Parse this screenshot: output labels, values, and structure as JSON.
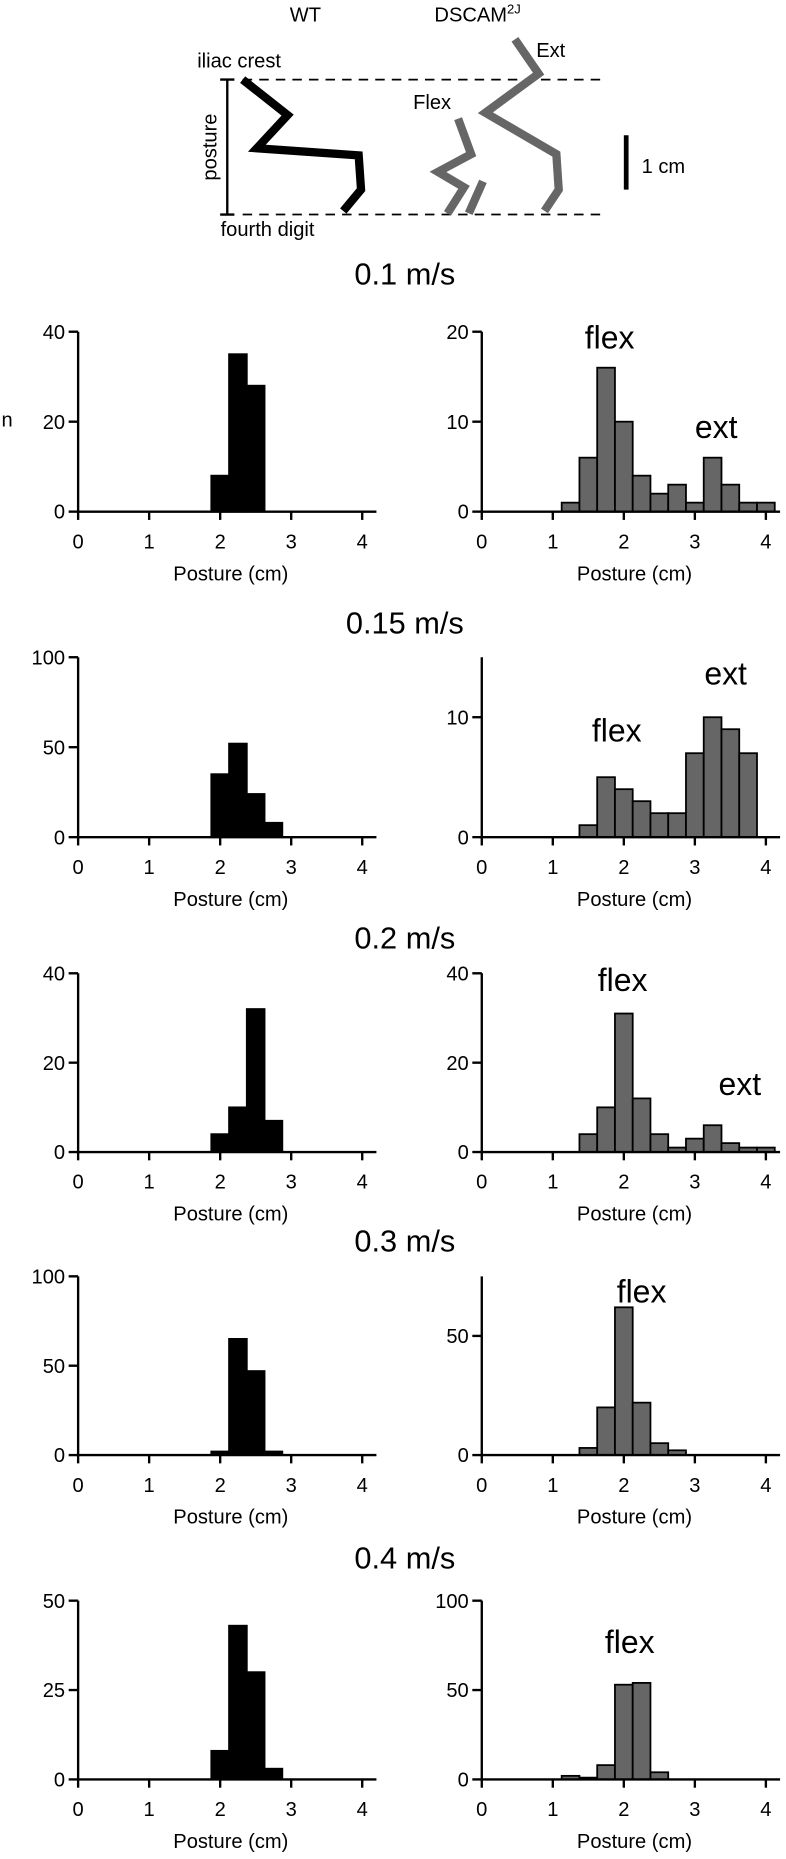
{
  "diagram": {
    "wt_label": "WT",
    "mutant_label": {
      "base": "DSCAM",
      "superscript": "2J"
    },
    "ext_label": "Ext",
    "flex_label": "Flex",
    "top_label": "iliac crest",
    "bottom_label": "fourth digit",
    "axis_label": "posture",
    "scale_label": "1 cm"
  },
  "speeds": [
    "0.1 m/s",
    "0.15 m/s",
    "0.2 m/s",
    "0.3 m/s",
    "0.4 m/s"
  ],
  "chart_data": [
    {
      "type": "histogram",
      "ylabel": "n",
      "xlabel": "Posture (cm)",
      "color": "#000000",
      "bins": [
        1.875,
        2.125,
        2.375,
        2.625
      ],
      "counts": [
        8,
        35,
        28
      ],
      "xlim": [
        0,
        4.2
      ],
      "xticks": [
        0,
        1,
        2,
        3,
        4
      ],
      "ylim": [
        0,
        40
      ],
      "yticks": [
        0,
        20,
        40
      ]
    },
    {
      "type": "histogram",
      "xlabel": "Posture (cm)",
      "color": "#666666",
      "bins": [
        1.125,
        1.375,
        1.625,
        1.875,
        2.125,
        2.375,
        2.625,
        2.875,
        3.125,
        3.375,
        3.625,
        3.875,
        4.125
      ],
      "counts": [
        1,
        6,
        16,
        10,
        4,
        2,
        3,
        1,
        6,
        3,
        1,
        1
      ],
      "xlim": [
        0,
        4.2
      ],
      "xticks": [
        0,
        1,
        2,
        3,
        4
      ],
      "ylim": [
        0,
        20
      ],
      "yticks": [
        0,
        10,
        20
      ],
      "annotations": [
        "flex",
        "ext"
      ]
    },
    {
      "type": "histogram",
      "xlabel": "Posture (cm)",
      "color": "#000000",
      "bins": [
        1.875,
        2.125,
        2.375,
        2.625,
        2.875
      ],
      "counts": [
        35,
        52,
        24,
        8
      ],
      "xlim": [
        0,
        4.2
      ],
      "xticks": [
        0,
        1,
        2,
        3,
        4
      ],
      "ylim": [
        0,
        100
      ],
      "yticks": [
        0,
        50,
        100
      ]
    },
    {
      "type": "histogram",
      "xlabel": "Posture (cm)",
      "color": "#666666",
      "bins": [
        1.375,
        1.625,
        1.875,
        2.125,
        2.375,
        2.625,
        2.875,
        3.125,
        3.375,
        3.625,
        3.875
      ],
      "counts": [
        1,
        5,
        4,
        3,
        2,
        2,
        7,
        10,
        9,
        7
      ],
      "xlim": [
        0,
        4.2
      ],
      "xticks": [
        0,
        1,
        2,
        3,
        4
      ],
      "ylim": [
        0,
        15
      ],
      "yticks": [
        0,
        10
      ],
      "annotations": [
        "flex",
        "ext"
      ]
    },
    {
      "type": "histogram",
      "xlabel": "Posture (cm)",
      "color": "#000000",
      "bins": [
        1.875,
        2.125,
        2.375,
        2.625,
        2.875
      ],
      "counts": [
        4,
        10,
        32,
        7
      ],
      "xlim": [
        0,
        4.2
      ],
      "xticks": [
        0,
        1,
        2,
        3,
        4
      ],
      "ylim": [
        0,
        40
      ],
      "yticks": [
        0,
        20,
        40
      ]
    },
    {
      "type": "histogram",
      "xlabel": "Posture (cm)",
      "color": "#666666",
      "bins": [
        1.375,
        1.625,
        1.875,
        2.125,
        2.375,
        2.625,
        2.875,
        3.125,
        3.375,
        3.625,
        3.875,
        4.125
      ],
      "counts": [
        4,
        10,
        31,
        12,
        4,
        1,
        3,
        6,
        2,
        1,
        1
      ],
      "xlim": [
        0,
        4.2
      ],
      "xticks": [
        0,
        1,
        2,
        3,
        4
      ],
      "ylim": [
        0,
        40
      ],
      "yticks": [
        0,
        20,
        40
      ],
      "annotations": [
        "flex",
        "ext"
      ]
    },
    {
      "type": "histogram",
      "xlabel": "Posture (cm)",
      "color": "#000000",
      "bins": [
        1.875,
        2.125,
        2.375,
        2.625,
        2.875
      ],
      "counts": [
        2,
        65,
        47,
        2
      ],
      "xlim": [
        0,
        4.2
      ],
      "xticks": [
        0,
        1,
        2,
        3,
        4
      ],
      "ylim": [
        0,
        100
      ],
      "yticks": [
        0,
        50,
        100
      ]
    },
    {
      "type": "histogram",
      "xlabel": "Posture (cm)",
      "color": "#666666",
      "bins": [
        1.375,
        1.625,
        1.875,
        2.125,
        2.375,
        2.625,
        2.875
      ],
      "counts": [
        3,
        20,
        62,
        22,
        5,
        2
      ],
      "xlim": [
        0,
        4.2
      ],
      "xticks": [
        0,
        1,
        2,
        3,
        4
      ],
      "ylim": [
        0,
        75
      ],
      "yticks": [
        0,
        50
      ],
      "annotations": [
        "flex"
      ]
    },
    {
      "type": "histogram",
      "xlabel": "Posture (cm)",
      "color": "#000000",
      "bins": [
        1.875,
        2.125,
        2.375,
        2.625,
        2.875
      ],
      "counts": [
        8,
        43,
        30,
        3
      ],
      "xlim": [
        0,
        4.2
      ],
      "xticks": [
        0,
        1,
        2,
        3,
        4
      ],
      "ylim": [
        0,
        50
      ],
      "yticks": [
        0,
        25,
        50
      ]
    },
    {
      "type": "histogram",
      "xlabel": "Posture (cm)",
      "color": "#666666",
      "bins": [
        1.125,
        1.375,
        1.625,
        1.875,
        2.125,
        2.375,
        2.625
      ],
      "counts": [
        2,
        1,
        8,
        53,
        54,
        4
      ],
      "xlim": [
        0,
        4.2
      ],
      "xticks": [
        0,
        1,
        2,
        3,
        4
      ],
      "ylim": [
        0,
        100
      ],
      "yticks": [
        0,
        50,
        100
      ],
      "annotations": [
        "flex"
      ]
    }
  ]
}
